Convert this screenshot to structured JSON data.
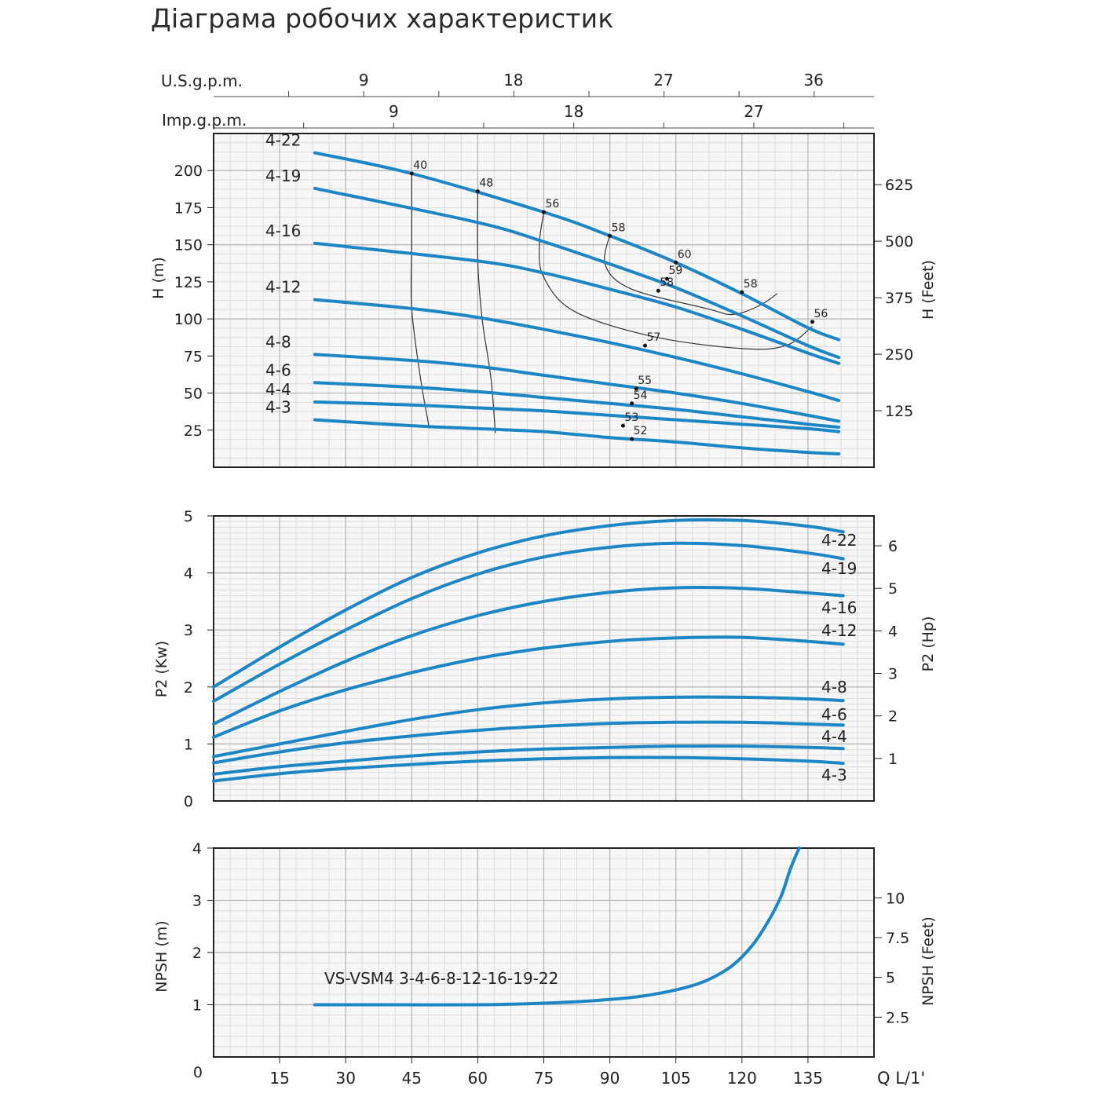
{
  "page_title": "Діаграма робочих характеристик",
  "chart_data": [
    {
      "id": "head",
      "type": "line",
      "x_unit_label": "Q L/1'",
      "ylabel": "H (m)",
      "ylabel_right": "H (Feet)",
      "xlim": [
        0,
        150
      ],
      "ylim": [
        0,
        225
      ],
      "yticks": [
        25,
        50,
        75,
        100,
        125,
        150,
        175,
        200
      ],
      "yticks_right": [
        {
          "label": "125",
          "value": 38.1
        },
        {
          "label": "250",
          "value": 76.2
        },
        {
          "label": "375",
          "value": 114.3
        },
        {
          "label": "500",
          "value": 152.4
        },
        {
          "label": "625",
          "value": 190.5
        }
      ],
      "top_axes": [
        {
          "label": "U.S.g.p.m.",
          "ticks": [
            {
              "label": "9",
              "value": 34.1
            },
            {
              "label": "18",
              "value": 68.1
            },
            {
              "label": "27",
              "value": 102.2
            },
            {
              "label": "36",
              "value": 136.3
            }
          ]
        },
        {
          "label": "Imp.g.p.m.",
          "ticks": [
            {
              "label": "9",
              "value": 40.9
            },
            {
              "label": "18",
              "value": 81.8
            },
            {
              "label": "27",
              "value": 122.7
            }
          ]
        }
      ],
      "series": [
        {
          "name": "4-22",
          "points": [
            [
              23,
              212
            ],
            [
              45,
              198
            ],
            [
              75,
              172
            ],
            [
              90,
              156
            ],
            [
              105,
              138
            ],
            [
              120,
              117
            ],
            [
              135,
              94
            ],
            [
              142,
              86
            ]
          ]
        },
        {
          "name": "4-19",
          "points": [
            [
              23,
              188
            ],
            [
              60,
              165
            ],
            [
              75,
              152
            ],
            [
              90,
              137
            ],
            [
              105,
              121
            ],
            [
              120,
              102
            ],
            [
              135,
              82
            ],
            [
              142,
              74
            ]
          ]
        },
        {
          "name": "4-16",
          "points": [
            [
              23,
              151
            ],
            [
              60,
              139
            ],
            [
              75,
              131
            ],
            [
              90,
              120
            ],
            [
              105,
              108
            ],
            [
              120,
              93
            ],
            [
              135,
              77
            ],
            [
              142,
              70
            ]
          ]
        },
        {
          "name": "4-12",
          "points": [
            [
              23,
              113
            ],
            [
              45,
              107
            ],
            [
              60,
              101
            ],
            [
              75,
              93
            ],
            [
              90,
              84
            ],
            [
              105,
              74
            ],
            [
              120,
              63
            ],
            [
              135,
              51
            ],
            [
              142,
              45
            ]
          ]
        },
        {
          "name": "4-8",
          "points": [
            [
              23,
              76
            ],
            [
              45,
              72
            ],
            [
              60,
              68
            ],
            [
              75,
              62
            ],
            [
              90,
              56
            ],
            [
              105,
              50
            ],
            [
              120,
              43
            ],
            [
              135,
              35
            ],
            [
              142,
              31
            ]
          ]
        },
        {
          "name": "4-6",
          "points": [
            [
              23,
              57
            ],
            [
              45,
              54
            ],
            [
              60,
              51
            ],
            [
              75,
              47
            ],
            [
              90,
              43
            ],
            [
              105,
              39
            ],
            [
              120,
              34
            ],
            [
              135,
              29
            ],
            [
              142,
              27
            ]
          ]
        },
        {
          "name": "4-4",
          "points": [
            [
              23,
              44
            ],
            [
              45,
              42
            ],
            [
              60,
              40
            ],
            [
              75,
              38
            ],
            [
              90,
              35
            ],
            [
              105,
              32
            ],
            [
              120,
              29
            ],
            [
              135,
              26
            ],
            [
              142,
              24
            ]
          ]
        },
        {
          "name": "4-3",
          "points": [
            [
              23,
              32
            ],
            [
              45,
              28
            ],
            [
              60,
              26
            ],
            [
              75,
              24
            ],
            [
              90,
              20
            ],
            [
              105,
              17
            ],
            [
              120,
              13
            ],
            [
              135,
              10
            ],
            [
              142,
              9
            ]
          ]
        }
      ],
      "efficiency_curves": [
        [
          [
            45,
            198
          ],
          [
            45,
            150
          ],
          [
            45,
            107
          ],
          [
            47,
            60
          ],
          [
            49,
            26
          ]
        ],
        [
          [
            60,
            186
          ],
          [
            60,
            140
          ],
          [
            61,
            100
          ],
          [
            63,
            60
          ],
          [
            64,
            23
          ]
        ],
        [
          [
            75,
            172
          ],
          [
            74,
            150
          ],
          [
            75,
            128
          ],
          [
            82,
            105
          ],
          [
            100,
            88
          ],
          [
            120,
            80
          ],
          [
            130,
            82
          ],
          [
            136,
            95
          ]
        ],
        [
          [
            90,
            157
          ],
          [
            89,
            136
          ],
          [
            95,
            120
          ],
          [
            112,
            107
          ],
          [
            118,
            103
          ],
          [
            124,
            109
          ],
          [
            128,
            117
          ]
        ]
      ],
      "efficiency_labels": [
        {
          "text": "40",
          "x": 45,
          "y": 198
        },
        {
          "text": "48",
          "x": 60,
          "y": 186
        },
        {
          "text": "56",
          "x": 75,
          "y": 172
        },
        {
          "text": "58",
          "x": 90,
          "y": 156
        },
        {
          "text": "60",
          "x": 105,
          "y": 138
        },
        {
          "text": "59",
          "x": 103,
          "y": 127
        },
        {
          "text": "58",
          "x": 101,
          "y": 119
        },
        {
          "text": "58",
          "x": 120,
          "y": 118
        },
        {
          "text": "56",
          "x": 136,
          "y": 98
        },
        {
          "text": "57",
          "x": 98,
          "y": 82
        },
        {
          "text": "55",
          "x": 96,
          "y": 53
        },
        {
          "text": "54",
          "x": 95,
          "y": 43
        },
        {
          "text": "53",
          "x": 93,
          "y": 28
        },
        {
          "text": "52",
          "x": 95,
          "y": 19
        }
      ]
    },
    {
      "id": "power",
      "type": "line",
      "ylabel": "P2 (Kw)",
      "ylabel_right": "P2 (Hp)",
      "xlim": [
        0,
        150
      ],
      "ylim": [
        0,
        5
      ],
      "yticks": [
        0,
        1,
        2,
        3,
        4,
        5
      ],
      "yticks_right": [
        {
          "label": "1",
          "value": 0.746
        },
        {
          "label": "2",
          "value": 1.492
        },
        {
          "label": "3",
          "value": 2.238
        },
        {
          "label": "4",
          "value": 2.984
        },
        {
          "label": "5",
          "value": 3.73
        },
        {
          "label": "6",
          "value": 4.476
        }
      ],
      "series": [
        {
          "name": "4-22",
          "points": [
            [
              0,
              2.0
            ],
            [
              15,
              2.7
            ],
            [
              30,
              3.35
            ],
            [
              45,
              3.92
            ],
            [
              60,
              4.35
            ],
            [
              75,
              4.65
            ],
            [
              90,
              4.83
            ],
            [
              105,
              4.92
            ],
            [
              120,
              4.92
            ],
            [
              135,
              4.82
            ],
            [
              143,
              4.72
            ]
          ]
        },
        {
          "name": "4-19",
          "points": [
            [
              0,
              1.75
            ],
            [
              15,
              2.4
            ],
            [
              30,
              3.0
            ],
            [
              45,
              3.55
            ],
            [
              60,
              3.98
            ],
            [
              75,
              4.28
            ],
            [
              90,
              4.45
            ],
            [
              105,
              4.52
            ],
            [
              120,
              4.48
            ],
            [
              135,
              4.35
            ],
            [
              143,
              4.25
            ]
          ]
        },
        {
          "name": "4-16",
          "points": [
            [
              0,
              1.35
            ],
            [
              15,
              1.92
            ],
            [
              30,
              2.45
            ],
            [
              45,
              2.9
            ],
            [
              60,
              3.25
            ],
            [
              75,
              3.5
            ],
            [
              90,
              3.66
            ],
            [
              105,
              3.74
            ],
            [
              120,
              3.73
            ],
            [
              135,
              3.65
            ],
            [
              143,
              3.6
            ]
          ]
        },
        {
          "name": "4-12",
          "points": [
            [
              0,
              1.12
            ],
            [
              15,
              1.58
            ],
            [
              30,
              1.95
            ],
            [
              45,
              2.25
            ],
            [
              60,
              2.5
            ],
            [
              75,
              2.68
            ],
            [
              90,
              2.8
            ],
            [
              105,
              2.86
            ],
            [
              120,
              2.87
            ],
            [
              135,
              2.8
            ],
            [
              143,
              2.75
            ]
          ]
        },
        {
          "name": "4-8",
          "points": [
            [
              0,
              0.78
            ],
            [
              15,
              1.0
            ],
            [
              30,
              1.22
            ],
            [
              45,
              1.43
            ],
            [
              60,
              1.6
            ],
            [
              75,
              1.72
            ],
            [
              90,
              1.79
            ],
            [
              105,
              1.82
            ],
            [
              120,
              1.82
            ],
            [
              135,
              1.79
            ],
            [
              143,
              1.76
            ]
          ]
        },
        {
          "name": "4-6",
          "points": [
            [
              0,
              0.67
            ],
            [
              15,
              0.86
            ],
            [
              30,
              1.02
            ],
            [
              45,
              1.14
            ],
            [
              60,
              1.24
            ],
            [
              75,
              1.31
            ],
            [
              90,
              1.36
            ],
            [
              105,
              1.38
            ],
            [
              120,
              1.38
            ],
            [
              135,
              1.35
            ],
            [
              143,
              1.33
            ]
          ]
        },
        {
          "name": "4-4",
          "points": [
            [
              0,
              0.47
            ],
            [
              15,
              0.6
            ],
            [
              30,
              0.7
            ],
            [
              45,
              0.79
            ],
            [
              60,
              0.86
            ],
            [
              75,
              0.91
            ],
            [
              90,
              0.94
            ],
            [
              105,
              0.96
            ],
            [
              120,
              0.96
            ],
            [
              135,
              0.94
            ],
            [
              143,
              0.92
            ]
          ]
        },
        {
          "name": "4-3",
          "points": [
            [
              0,
              0.35
            ],
            [
              15,
              0.48
            ],
            [
              30,
              0.57
            ],
            [
              45,
              0.64
            ],
            [
              60,
              0.7
            ],
            [
              75,
              0.74
            ],
            [
              90,
              0.76
            ],
            [
              105,
              0.76
            ],
            [
              120,
              0.74
            ],
            [
              135,
              0.7
            ],
            [
              143,
              0.66
            ]
          ]
        }
      ],
      "legend_order_right": [
        "4-22",
        "4-19",
        "4-16",
        "4-12",
        "4-8",
        "4-6",
        "4-4",
        "4-3"
      ]
    },
    {
      "id": "npsh",
      "type": "line",
      "ylabel": "NPSH (m)",
      "ylabel_right": "NPSH (Feet)",
      "xlabel": "Q L/1'",
      "xlim": [
        0,
        150
      ],
      "ylim": [
        0,
        4
      ],
      "xticks": [
        15,
        30,
        45,
        60,
        75,
        90,
        105,
        120,
        135
      ],
      "yticks": [
        0,
        1,
        2,
        3,
        4
      ],
      "yticks_right": [
        {
          "label": "2.5",
          "value": 0.762
        },
        {
          "label": "5",
          "value": 1.524
        },
        {
          "label": "7.5",
          "value": 2.286
        },
        {
          "label": "10",
          "value": 3.048
        }
      ],
      "annotation": "VS-VSM4 3-4-6-8-12-16-19-22",
      "series": [
        {
          "name": "VS-VSM4 3-4-6-8-12-16-19-22",
          "points": [
            [
              23,
              1.0
            ],
            [
              40,
              1.0
            ],
            [
              60,
              1.0
            ],
            [
              75,
              1.03
            ],
            [
              90,
              1.1
            ],
            [
              100,
              1.2
            ],
            [
              110,
              1.4
            ],
            [
              117,
              1.7
            ],
            [
              122,
              2.1
            ],
            [
              126,
              2.6
            ],
            [
              129,
              3.1
            ],
            [
              131,
              3.6
            ],
            [
              133,
              4.0
            ]
          ]
        }
      ]
    }
  ]
}
